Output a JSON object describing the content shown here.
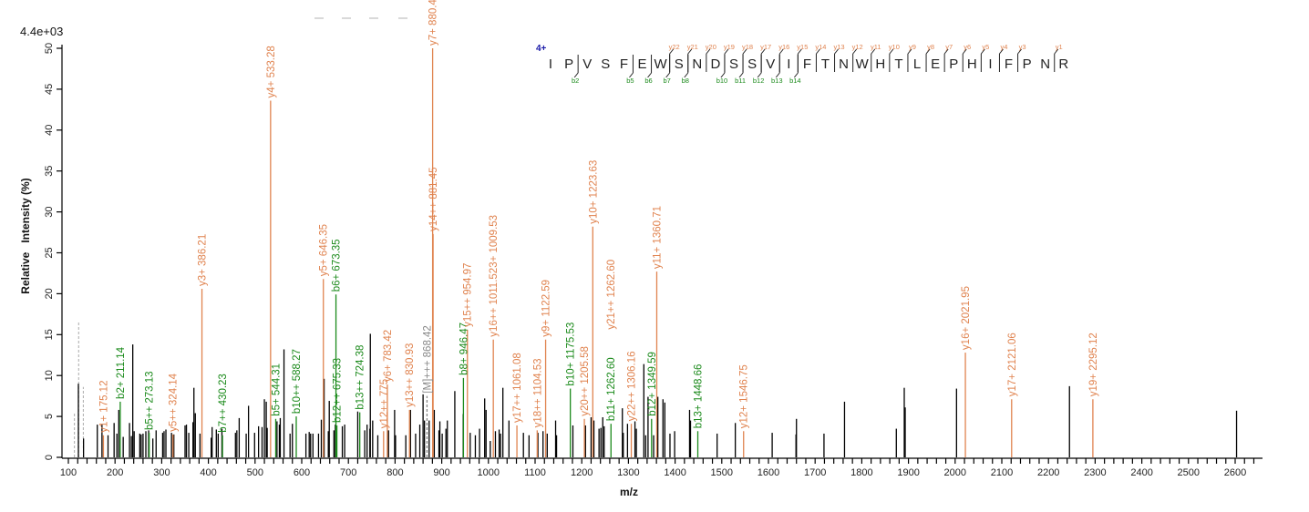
{
  "chart_data": {
    "type": "bar",
    "subtype": "mass-spectrum-sticks",
    "scale_label": "4.4e+03",
    "xlabel": "m/z",
    "ylabel": "Relative   Intensity (%)",
    "ylim": [
      0,
      50
    ],
    "xlim": [
      90,
      2650
    ],
    "yticks": [
      0,
      5,
      10,
      15,
      20,
      25,
      30,
      35,
      40,
      45,
      50
    ],
    "xticks": [
      100,
      200,
      300,
      400,
      500,
      600,
      700,
      800,
      900,
      1000,
      1100,
      1200,
      1300,
      1400,
      1500,
      1600,
      1700,
      1800,
      1900,
      2000,
      2100,
      2200,
      2300,
      2400,
      2500,
      2600
    ],
    "grid": false,
    "colors": {
      "y_ion": "#e0834f",
      "b_ion": "#1b8a1b",
      "precursor": "#888888",
      "unassigned": "#000000",
      "charge": "#1a1aa8"
    },
    "annotated_peaks": [
      {
        "mz": 175.12,
        "intensity": 2.7,
        "ion": "y",
        "label": "y1+ 175.12"
      },
      {
        "mz": 211.14,
        "intensity": 6.8,
        "ion": "b",
        "label": "b2+ 211.14"
      },
      {
        "mz": 273.13,
        "intensity": 3.0,
        "ion": "b",
        "label": "b5++ 273.13"
      },
      {
        "mz": 324.14,
        "intensity": 2.8,
        "ion": "y",
        "label": "y5++ 324.14"
      },
      {
        "mz": 386.21,
        "intensity": 20.6,
        "ion": "y",
        "label": "y3+ 386.21"
      },
      {
        "mz": 430.23,
        "intensity": 2.7,
        "ion": "b",
        "label": "b7++ 430.23"
      },
      {
        "mz": 533.28,
        "intensity": 43.6,
        "ion": "y",
        "label": "y4+ 533.28"
      },
      {
        "mz": 544.31,
        "intensity": 4.7,
        "ion": "b",
        "label": "b5+ 544.31"
      },
      {
        "mz": 588.27,
        "intensity": 5.0,
        "ion": "b",
        "label": "b10++ 588.27"
      },
      {
        "mz": 646.35,
        "intensity": 21.8,
        "ion": "y",
        "label": "y5+ 646.35"
      },
      {
        "mz": 673.35,
        "intensity": 19.9,
        "ion": "b",
        "label": "b6+ 673.35"
      },
      {
        "mz": 675.33,
        "intensity": 3.9,
        "ion": "b",
        "label": "b12++ 675.33"
      },
      {
        "mz": 724.38,
        "intensity": 5.5,
        "ion": "b",
        "label": "b13++ 724.38"
      },
      {
        "mz": 775.4,
        "intensity": 3.2,
        "ion": "y",
        "label": "y12++ 775."
      },
      {
        "mz": 783.42,
        "intensity": 8.9,
        "ion": "y",
        "label": "y6+ 783.42"
      },
      {
        "mz": 830.93,
        "intensity": 5.8,
        "ion": "y",
        "label": "y13++ 830.93"
      },
      {
        "mz": 868.42,
        "intensity": 7.5,
        "ion": "M",
        "label": "[M]+++ 868.42"
      },
      {
        "mz": 880.48,
        "intensity": 50.0,
        "ion": "y",
        "label": "y7+ 880.48"
      },
      {
        "mz": 881.45,
        "intensity": 27.3,
        "ion": "y",
        "label": "y14++ 881.45"
      },
      {
        "mz": 946.47,
        "intensity": 9.7,
        "ion": "b",
        "label": "b8+ 946.47"
      },
      {
        "mz": 954.97,
        "intensity": 15.6,
        "ion": "y",
        "label": "y15++ 954.97"
      },
      {
        "mz": 1010.5,
        "intensity": 14.4,
        "ion": "y",
        "label": "y16++ 1011.523+ 1009.53"
      },
      {
        "mz": 1061.08,
        "intensity": 3.9,
        "ion": "y",
        "label": "y17++ 1061.08"
      },
      {
        "mz": 1104.53,
        "intensity": 3.3,
        "ion": "y",
        "label": "y18++ 1104.53"
      },
      {
        "mz": 1122.59,
        "intensity": 14.4,
        "ion": "y",
        "label": "y9+ 1122.59"
      },
      {
        "mz": 1175.53,
        "intensity": 8.4,
        "ion": "b",
        "label": "b10+ 1175.53"
      },
      {
        "mz": 1205.58,
        "intensity": 4.7,
        "ion": "y",
        "label": "y20++ 1205.58"
      },
      {
        "mz": 1223.63,
        "intensity": 28.2,
        "ion": "y",
        "label": "y10+ 1223.63"
      },
      {
        "mz": 1262.6,
        "intensity": 4.1,
        "ion": "b",
        "label": "b11+ 1262.60"
      },
      {
        "mz": 1262.61,
        "intensity": 15.3,
        "ion": "y",
        "label": "y21++ 1262.60",
        "line": false
      },
      {
        "mz": 1306.16,
        "intensity": 4.1,
        "ion": "y",
        "label": "y22++ 1306.16"
      },
      {
        "mz": 1349.59,
        "intensity": 4.7,
        "ion": "b",
        "label": "b12+ 1349.59"
      },
      {
        "mz": 1360.71,
        "intensity": 22.7,
        "ion": "y",
        "label": "y11+ 1360.71"
      },
      {
        "mz": 1448.66,
        "intensity": 3.2,
        "ion": "b",
        "label": "b13+ 1448.66"
      },
      {
        "mz": 1546.75,
        "intensity": 3.2,
        "ion": "y",
        "label": "y12+ 1546.75"
      },
      {
        "mz": 2021.95,
        "intensity": 12.8,
        "ion": "y",
        "label": "y16+ 2021.95"
      },
      {
        "mz": 2121.06,
        "intensity": 7.1,
        "ion": "y",
        "label": "y17+ 2121.06"
      },
      {
        "mz": 2295.12,
        "intensity": 7.1,
        "ion": "y",
        "label": "y19+ 2295.12"
      }
    ],
    "dashed_peaks": [
      [
        113,
        5.4
      ],
      [
        122,
        16.6
      ],
      [
        132,
        8.6
      ]
    ],
    "unassigned_peaks": [
      [
        121.5,
        9.0
      ],
      [
        132.5,
        2.3
      ],
      [
        162,
        4.0
      ],
      [
        172,
        4.0
      ],
      [
        185,
        2.7
      ],
      [
        198,
        4.2
      ],
      [
        204,
        2.9
      ],
      [
        208,
        5.8
      ],
      [
        217.5,
        2.5
      ],
      [
        231,
        4.2
      ],
      [
        235,
        2.6
      ],
      [
        238,
        13.8
      ],
      [
        241,
        3.2
      ],
      [
        253,
        2.9
      ],
      [
        256,
        2.8
      ],
      [
        260,
        2.9
      ],
      [
        266,
        3.2
      ],
      [
        272,
        3.3
      ],
      [
        281,
        2.3
      ],
      [
        288,
        3.3
      ],
      [
        302,
        3.0
      ],
      [
        305,
        3.2
      ],
      [
        309,
        3.4
      ],
      [
        321,
        3.0
      ],
      [
        326,
        2.8
      ],
      [
        350,
        3.9
      ],
      [
        353,
        4.0
      ],
      [
        358,
        3.0
      ],
      [
        367,
        4.3
      ],
      [
        369,
        8.5
      ],
      [
        372,
        5.4
      ],
      [
        382,
        2.9
      ],
      [
        406,
        2.4
      ],
      [
        408,
        3.7
      ],
      [
        417,
        3.4
      ],
      [
        421,
        2.9
      ],
      [
        429,
        3.5
      ],
      [
        458,
        3.0
      ],
      [
        461,
        3.3
      ],
      [
        466,
        4.8
      ],
      [
        481,
        2.9
      ],
      [
        486,
        6.3
      ],
      [
        499,
        3.0
      ],
      [
        507.5,
        3.8
      ],
      [
        515,
        3.7
      ],
      [
        520,
        7.1
      ],
      [
        524,
        6.8
      ],
      [
        526,
        3.6
      ],
      [
        547,
        4.4
      ],
      [
        552,
        4.0
      ],
      [
        554,
        4.8
      ],
      [
        562,
        13.2
      ],
      [
        575,
        2.9
      ],
      [
        580,
        4.1
      ],
      [
        609,
        2.9
      ],
      [
        616,
        3.1
      ],
      [
        619,
        2.9
      ],
      [
        624,
        2.9
      ],
      [
        636,
        2.9
      ],
      [
        642,
        4.6
      ],
      [
        648,
        9.6
      ],
      [
        657,
        3.2
      ],
      [
        659,
        6.9
      ],
      [
        669,
        3.3
      ],
      [
        672,
        4.0
      ],
      [
        687,
        3.8
      ],
      [
        692,
        4.0
      ],
      [
        720,
        5.6
      ],
      [
        735,
        3.3
      ],
      [
        740,
        4.0
      ],
      [
        746,
        3.5
      ],
      [
        747,
        15.1
      ],
      [
        752,
        4.5
      ],
      [
        763,
        2.7
      ],
      [
        786,
        3.3
      ],
      [
        799,
        5.8
      ],
      [
        801,
        2.7
      ],
      [
        823,
        2.7
      ],
      [
        833,
        5.8
      ],
      [
        844,
        2.9
      ],
      [
        853,
        4.0
      ],
      [
        860,
        7.7
      ],
      [
        863,
        4.5
      ],
      [
        873,
        4.5
      ],
      [
        884,
        5.8
      ],
      [
        894,
        3.3
      ],
      [
        896,
        4.4
      ],
      [
        901,
        2.9
      ],
      [
        909,
        3.5
      ],
      [
        912,
        4.5
      ],
      [
        928,
        8.1
      ],
      [
        946,
        5.3
      ],
      [
        961,
        3.0
      ],
      [
        972,
        2.7
      ],
      [
        981,
        3.5
      ],
      [
        992,
        7.2
      ],
      [
        995,
        5.8
      ],
      [
        1004,
        2.0
      ],
      [
        1015,
        3.2
      ],
      [
        1023,
        3.4
      ],
      [
        1026,
        2.9
      ],
      [
        1031,
        8.5
      ],
      [
        1044,
        4.5
      ],
      [
        1075,
        3.0
      ],
      [
        1087,
        2.7
      ],
      [
        1106,
        3.0
      ],
      [
        1117,
        3.2
      ],
      [
        1126,
        2.9
      ],
      [
        1144,
        4.5
      ],
      [
        1146,
        2.7
      ],
      [
        1181,
        3.9
      ],
      [
        1208,
        3.9
      ],
      [
        1220,
        4.9
      ],
      [
        1226,
        4.5
      ],
      [
        1237,
        3.5
      ],
      [
        1241,
        3.6
      ],
      [
        1245,
        4.9
      ],
      [
        1248,
        3.8
      ],
      [
        1287,
        6.0
      ],
      [
        1289,
        3.0
      ],
      [
        1298,
        4.1
      ],
      [
        1314,
        4.4
      ],
      [
        1317,
        3.5
      ],
      [
        1333,
        11.4
      ],
      [
        1337,
        2.7
      ],
      [
        1342,
        7.4
      ],
      [
        1354,
        2.7
      ],
      [
        1363,
        7.4
      ],
      [
        1374,
        7.1
      ],
      [
        1378,
        6.7
      ],
      [
        1389,
        2.9
      ],
      [
        1399,
        3.2
      ],
      [
        1431,
        5.8
      ],
      [
        1433,
        4.5
      ],
      [
        1490,
        2.9
      ],
      [
        1529,
        4.2
      ],
      [
        1608,
        3.0
      ],
      [
        1659,
        2.8
      ],
      [
        1660,
        4.7
      ],
      [
        1719,
        2.9
      ],
      [
        1763,
        6.8
      ],
      [
        1874,
        3.5
      ],
      [
        1891,
        8.5
      ],
      [
        1893,
        6.1
      ],
      [
        2003,
        8.4
      ],
      [
        2245,
        8.7
      ],
      [
        2603,
        5.7
      ]
    ]
  },
  "sequence": {
    "charge": "4+",
    "residues": [
      "I",
      "P",
      "V",
      "S",
      "F",
      "E",
      "W",
      "S",
      "N",
      "D",
      "S",
      "S",
      "V",
      "I",
      "F",
      "T",
      "N",
      "W",
      "H",
      "T",
      "L",
      "E",
      "P",
      "H",
      "I",
      "F",
      "P",
      "N",
      "R"
    ],
    "b_ions": [
      2,
      5,
      6,
      7,
      8,
      10,
      11,
      12,
      13,
      14
    ],
    "y_ions": [
      22,
      21,
      20,
      19,
      18,
      17,
      16,
      15,
      14,
      13,
      12,
      11,
      10,
      9,
      8,
      7,
      6,
      5,
      4,
      3,
      1
    ]
  }
}
